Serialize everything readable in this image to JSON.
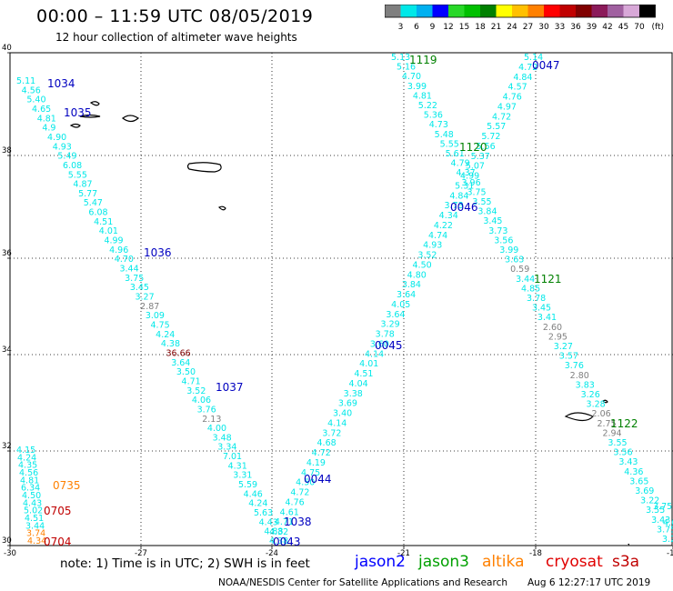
{
  "title": "00:00 – 11:59 UTC 08/05/2019",
  "subtitle": "12 hour collection of altimeter wave heights",
  "colorbar": {
    "colors": [
      "#7f7f7f",
      "#00e8e8",
      "#00b0f0",
      "#0000ff",
      "#28d828",
      "#00c000",
      "#008000",
      "#ffff00",
      "#ffc000",
      "#ff8000",
      "#ff0000",
      "#c00000",
      "#800000",
      "#8b1a5a",
      "#a060a0",
      "#d8a8d8",
      "#000000"
    ],
    "labels": [
      "3",
      "6",
      "9",
      "12",
      "15",
      "18",
      "21",
      "24",
      "27",
      "30",
      "33",
      "36",
      "39",
      "42",
      "45",
      "70"
    ],
    "unit": "(ft)"
  },
  "axes": {
    "x_ticks": [
      "-30",
      "-27",
      "-24",
      "-21",
      "-18",
      "-15"
    ],
    "y_ticks": [
      "40",
      "38",
      "36",
      "34",
      "32",
      "30"
    ]
  },
  "islands": [
    {
      "name": "azores-flores-corvo"
    },
    {
      "name": "azores-faial"
    },
    {
      "name": "azores-sao-jorge"
    },
    {
      "name": "azores-terceira"
    },
    {
      "name": "azores-sao-miguel"
    },
    {
      "name": "azores-santa-maria"
    },
    {
      "name": "madeira"
    },
    {
      "name": "porto-santo"
    }
  ],
  "tracks": [
    {
      "name": "track-jason2-west-1034",
      "labels": [
        {
          "t": "5.11",
          "c": "#00e8e8"
        },
        {
          "t": "4.56",
          "c": "#00e8e8"
        },
        {
          "t": "5.40",
          "c": "#00e8e8"
        },
        {
          "t": "4.65",
          "c": "#00e8e8"
        },
        {
          "t": "4.81",
          "c": "#00e8e8"
        },
        {
          "t": "4.9",
          "c": "#00e8e8"
        },
        {
          "t": "4.90",
          "c": "#00e8e8"
        },
        {
          "t": "4.93",
          "c": "#00e8e8"
        },
        {
          "t": "5.49",
          "c": "#00e8e8"
        },
        {
          "t": "6.08",
          "c": "#00e8e8"
        },
        {
          "t": "5.55",
          "c": "#00e8e8"
        },
        {
          "t": "4.87",
          "c": "#00e8e8"
        },
        {
          "t": "5.77",
          "c": "#00e8e8"
        },
        {
          "t": "5.47",
          "c": "#00e8e8"
        },
        {
          "t": "6.08",
          "c": "#00e8e8"
        },
        {
          "t": "4.51",
          "c": "#00e8e8"
        },
        {
          "t": "4.01",
          "c": "#00e8e8"
        },
        {
          "t": "4.99",
          "c": "#00e8e8"
        },
        {
          "t": "4.96",
          "c": "#00e8e8"
        },
        {
          "t": "4.70",
          "c": "#00e8e8"
        },
        {
          "t": "3.44",
          "c": "#00e8e8"
        },
        {
          "t": "3.75",
          "c": "#00e8e8"
        },
        {
          "t": "3.45",
          "c": "#00e8e8"
        },
        {
          "t": "3.27",
          "c": "#00e8e8"
        },
        {
          "t": "2.87",
          "c": "#7f7f7f"
        },
        {
          "t": "3.09",
          "c": "#00e8e8"
        },
        {
          "t": "4.75",
          "c": "#00e8e8"
        },
        {
          "t": "4.24",
          "c": "#00e8e8"
        },
        {
          "t": "4.38",
          "c": "#00e8e8"
        },
        {
          "t": "36.66",
          "c": "#800000"
        },
        {
          "t": "3.64",
          "c": "#00e8e8"
        },
        {
          "t": "3.50",
          "c": "#00e8e8"
        },
        {
          "t": "4.71",
          "c": "#00e8e8"
        },
        {
          "t": "3.52",
          "c": "#00e8e8"
        },
        {
          "t": "4.06",
          "c": "#00e8e8"
        },
        {
          "t": "3.76",
          "c": "#00e8e8"
        },
        {
          "t": "2.13",
          "c": "#7f7f7f"
        },
        {
          "t": "4.00",
          "c": "#00e8e8"
        },
        {
          "t": "3.48",
          "c": "#00e8e8"
        },
        {
          "t": "3.34",
          "c": "#00e8e8"
        },
        {
          "t": "7.01",
          "c": "#00e8e8"
        },
        {
          "t": "4.31",
          "c": "#00e8e8"
        },
        {
          "t": "3.31",
          "c": "#00e8e8"
        },
        {
          "t": "5.59",
          "c": "#00e8e8"
        },
        {
          "t": "4.46",
          "c": "#00e8e8"
        },
        {
          "t": "4.24",
          "c": "#00e8e8"
        },
        {
          "t": "5.63",
          "c": "#00e8e8"
        },
        {
          "t": "4.43",
          "c": "#00e8e8"
        },
        {
          "t": "4.88",
          "c": "#00e8e8"
        },
        {
          "t": "4.38",
          "c": "#00e8e8"
        }
      ]
    },
    {
      "name": "track-jason2-0045",
      "labels": [
        {
          "t": "4.32",
          "c": "#00e8e8"
        },
        {
          "t": "4.71",
          "c": "#00e8e8"
        },
        {
          "t": "4.61",
          "c": "#00e8e8"
        },
        {
          "t": "4.76",
          "c": "#00e8e8"
        },
        {
          "t": "4.72",
          "c": "#00e8e8"
        },
        {
          "t": "4.50",
          "c": "#00e8e8"
        },
        {
          "t": "4.75",
          "c": "#00e8e8"
        },
        {
          "t": "4.19",
          "c": "#00e8e8"
        },
        {
          "t": "4.72",
          "c": "#00e8e8"
        },
        {
          "t": "4.68",
          "c": "#00e8e8"
        },
        {
          "t": "3.72",
          "c": "#00e8e8"
        },
        {
          "t": "4.14",
          "c": "#00e8e8"
        },
        {
          "t": "3.40",
          "c": "#00e8e8"
        },
        {
          "t": "3.69",
          "c": "#00e8e8"
        },
        {
          "t": "3.38",
          "c": "#00e8e8"
        },
        {
          "t": "4.04",
          "c": "#00e8e8"
        },
        {
          "t": "4.51",
          "c": "#00e8e8"
        },
        {
          "t": "4.01",
          "c": "#00e8e8"
        },
        {
          "t": "4.14",
          "c": "#00e8e8"
        },
        {
          "t": "3.60",
          "c": "#00e8e8"
        },
        {
          "t": "3.78",
          "c": "#00e8e8"
        },
        {
          "t": "3.29",
          "c": "#00e8e8"
        },
        {
          "t": "3.64",
          "c": "#00e8e8"
        },
        {
          "t": "4.05",
          "c": "#00e8e8"
        },
        {
          "t": "3.64",
          "c": "#00e8e8"
        },
        {
          "t": "3.84",
          "c": "#00e8e8"
        },
        {
          "t": "4.80",
          "c": "#00e8e8"
        },
        {
          "t": "4.50",
          "c": "#00e8e8"
        },
        {
          "t": "3.52",
          "c": "#00e8e8"
        },
        {
          "t": "4.93",
          "c": "#00e8e8"
        },
        {
          "t": "4.74",
          "c": "#00e8e8"
        },
        {
          "t": "4.22",
          "c": "#00e8e8"
        },
        {
          "t": "4.34",
          "c": "#00e8e8"
        },
        {
          "t": "3.73",
          "c": "#00e8e8"
        },
        {
          "t": "4.84",
          "c": "#00e8e8"
        },
        {
          "t": "5.31",
          "c": "#00e8e8"
        },
        {
          "t": "4.99",
          "c": "#00e8e8"
        },
        {
          "t": "5.07",
          "c": "#00e8e8"
        },
        {
          "t": "5.37",
          "c": "#00e8e8"
        },
        {
          "t": "5.56",
          "c": "#00e8e8"
        },
        {
          "t": "5.72",
          "c": "#00e8e8"
        },
        {
          "t": "5.57",
          "c": "#00e8e8"
        },
        {
          "t": "4.72",
          "c": "#00e8e8"
        },
        {
          "t": "4.97",
          "c": "#00e8e8"
        },
        {
          "t": "4.76",
          "c": "#00e8e8"
        },
        {
          "t": "4.57",
          "c": "#00e8e8"
        },
        {
          "t": "4.84",
          "c": "#00e8e8"
        },
        {
          "t": "4.72",
          "c": "#00e8e8"
        },
        {
          "t": "5.14",
          "c": "#00e8e8"
        }
      ]
    },
    {
      "name": "track-jason3-1119",
      "labels": [
        {
          "t": "5.13",
          "c": "#00e8e8"
        },
        {
          "t": "5.16",
          "c": "#00e8e8"
        },
        {
          "t": "4.70",
          "c": "#00e8e8"
        },
        {
          "t": "3.99",
          "c": "#00e8e8"
        },
        {
          "t": "4.81",
          "c": "#00e8e8"
        },
        {
          "t": "5.22",
          "c": "#00e8e8"
        },
        {
          "t": "5.36",
          "c": "#00e8e8"
        },
        {
          "t": "4.73",
          "c": "#00e8e8"
        },
        {
          "t": "5.48",
          "c": "#00e8e8"
        },
        {
          "t": "5.55",
          "c": "#00e8e8"
        },
        {
          "t": "5.61",
          "c": "#00e8e8"
        },
        {
          "t": "4.79",
          "c": "#00e8e8"
        },
        {
          "t": "4.37",
          "c": "#00e8e8"
        },
        {
          "t": "3.96",
          "c": "#00e8e8"
        },
        {
          "t": "3.75",
          "c": "#00e8e8"
        },
        {
          "t": "3.55",
          "c": "#00e8e8"
        },
        {
          "t": "3.84",
          "c": "#00e8e8"
        },
        {
          "t": "3.45",
          "c": "#00e8e8"
        },
        {
          "t": "3.73",
          "c": "#00e8e8"
        },
        {
          "t": "3.56",
          "c": "#00e8e8"
        },
        {
          "t": "3.99",
          "c": "#00e8e8"
        },
        {
          "t": "3.63",
          "c": "#00e8e8"
        },
        {
          "t": "0.59",
          "c": "#7f7f7f"
        },
        {
          "t": "3.44",
          "c": "#00e8e8"
        },
        {
          "t": "4.85",
          "c": "#00e8e8"
        },
        {
          "t": "3.78",
          "c": "#00e8e8"
        },
        {
          "t": "3.45",
          "c": "#00e8e8"
        },
        {
          "t": "3.41",
          "c": "#00e8e8"
        },
        {
          "t": "2.60",
          "c": "#7f7f7f"
        },
        {
          "t": "2.95",
          "c": "#7f7f7f"
        },
        {
          "t": "3.27",
          "c": "#00e8e8"
        },
        {
          "t": "3.57",
          "c": "#00e8e8"
        },
        {
          "t": "3.76",
          "c": "#00e8e8"
        },
        {
          "t": "2.80",
          "c": "#7f7f7f"
        },
        {
          "t": "3.83",
          "c": "#00e8e8"
        },
        {
          "t": "3.26",
          "c": "#00e8e8"
        },
        {
          "t": "3.28",
          "c": "#00e8e8"
        },
        {
          "t": "2.06",
          "c": "#7f7f7f"
        },
        {
          "t": "2.75",
          "c": "#7f7f7f"
        },
        {
          "t": "2.94",
          "c": "#7f7f7f"
        },
        {
          "t": "3.55",
          "c": "#00e8e8"
        },
        {
          "t": "3.56",
          "c": "#00e8e8"
        },
        {
          "t": "3.43",
          "c": "#00e8e8"
        },
        {
          "t": "4.36",
          "c": "#00e8e8"
        },
        {
          "t": "3.65",
          "c": "#00e8e8"
        },
        {
          "t": "3.69",
          "c": "#00e8e8"
        },
        {
          "t": "3.22",
          "c": "#00e8e8"
        },
        {
          "t": "3.55",
          "c": "#00e8e8"
        },
        {
          "t": "3.43",
          "c": "#00e8e8"
        },
        {
          "t": "3.75",
          "c": "#00e8e8"
        },
        {
          "t": "3.22",
          "c": "#00e8e8"
        }
      ]
    },
    {
      "name": "track-bottomleft",
      "labels": [
        {
          "t": "4.15",
          "c": "#00e8e8"
        },
        {
          "t": "4.24",
          "c": "#00e8e8"
        },
        {
          "t": "4.35",
          "c": "#00e8e8"
        },
        {
          "t": "4.56",
          "c": "#00e8e8"
        },
        {
          "t": "4.81",
          "c": "#00e8e8"
        },
        {
          "t": "6.34",
          "c": "#00e8e8"
        },
        {
          "t": "4.50",
          "c": "#00e8e8"
        },
        {
          "t": "4.43",
          "c": "#00e8e8"
        },
        {
          "t": "5.02",
          "c": "#00e8e8"
        },
        {
          "t": "4.51",
          "c": "#00e8e8"
        },
        {
          "t": "3.44",
          "c": "#00e8e8"
        },
        {
          "t": "3.74",
          "c": "#ff8000"
        },
        {
          "t": "4.34",
          "c": "#ff8000"
        }
      ]
    },
    {
      "name": "track-right-edge",
      "labels": [
        {
          "t": "3.75",
          "c": "#00e8e8"
        },
        {
          "t": "4.0",
          "c": "#00e8e8"
        },
        {
          "t": "4.19",
          "c": "#00e8e8"
        }
      ]
    }
  ],
  "pass_labels": [
    {
      "t": "1034",
      "c": "#0000c0"
    },
    {
      "t": "1035",
      "c": "#0000c0"
    },
    {
      "t": "1036",
      "c": "#0000c0"
    },
    {
      "t": "1037",
      "c": "#0000c0"
    },
    {
      "t": "1038",
      "c": "#0000c0"
    },
    {
      "t": "0043",
      "c": "#0000c0"
    },
    {
      "t": "0044",
      "c": "#0000c0"
    },
    {
      "t": "0045",
      "c": "#0000c0"
    },
    {
      "t": "0046",
      "c": "#0000c0"
    },
    {
      "t": "0047",
      "c": "#0000c0"
    },
    {
      "t": "1119",
      "c": "#008000"
    },
    {
      "t": "1120",
      "c": "#008000"
    },
    {
      "t": "1121",
      "c": "#008000"
    },
    {
      "t": "1122",
      "c": "#008000"
    },
    {
      "t": "0735",
      "c": "#ff8000"
    },
    {
      "t": "0705",
      "c": "#c00000"
    },
    {
      "t": "0704",
      "c": "#c00000"
    }
  ],
  "note": "note:  1) Time is in UTC;  2) SWH is in feet",
  "legend": [
    {
      "t": "jason2",
      "c": "#0000ff"
    },
    {
      "t": "jason3",
      "c": "#00a000"
    },
    {
      "t": "altika",
      "c": "#ff8000"
    },
    {
      "t": "cryosat",
      "c": "#e00000"
    },
    {
      "t": "s3a",
      "c": "#c00000"
    }
  ],
  "credit": "NOAA/NESDIS Center for Satellite Applications and Research",
  "timestamp": "Aug  6 12:27:17 UTC 2019"
}
